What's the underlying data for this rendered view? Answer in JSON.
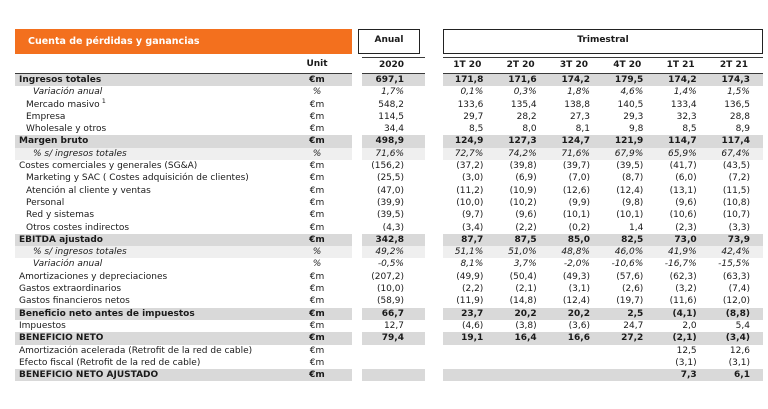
{
  "title": "Cuenta de pérdidas y ganancias",
  "colors": {
    "accent_orange": "#F3701E",
    "section_band": "#D9D9D9",
    "percent_band": "#EFEFEF"
  },
  "columns": {
    "unit_label": "Unit",
    "anual_label": "Anual",
    "anual_year": "2020",
    "trimestral_label": "Trimestral",
    "quarters": [
      "1T 20",
      "2T 20",
      "3T 20",
      "4T 20",
      "1T 21",
      "2T 21"
    ]
  },
  "rows": [
    {
      "label": "Ingresos totales",
      "unit": "€m",
      "style": "section",
      "indent": 0,
      "anual": "697,1",
      "values": [
        "171,8",
        "171,6",
        "174,2",
        "179,5",
        "174,2",
        "174,3"
      ]
    },
    {
      "label": "Variación anual",
      "unit": "%",
      "style": "italic",
      "indent": 2,
      "anual": "1,7%",
      "values": [
        "0,1%",
        "0,3%",
        "1,8%",
        "4,6%",
        "1,4%",
        "1,5%"
      ]
    },
    {
      "label": "Mercado masivo",
      "sup": "1",
      "unit": "€m",
      "style": "normal",
      "indent": 1,
      "anual": "548,2",
      "values": [
        "133,6",
        "135,4",
        "138,8",
        "140,5",
        "133,4",
        "136,5"
      ]
    },
    {
      "label": "Empresa",
      "unit": "€m",
      "style": "normal",
      "indent": 1,
      "anual": "114,5",
      "values": [
        "29,7",
        "28,2",
        "27,3",
        "29,3",
        "32,3",
        "28,8"
      ]
    },
    {
      "label": "Wholesale y otros",
      "unit": "€m",
      "style": "normal",
      "indent": 1,
      "anual": "34,4",
      "values": [
        "8,5",
        "8,0",
        "8,1",
        "9,8",
        "8,5",
        "8,9"
      ]
    },
    {
      "label": "Margen bruto",
      "unit": "€m",
      "style": "section",
      "indent": 0,
      "anual": "498,9",
      "values": [
        "124,9",
        "127,3",
        "124,7",
        "121,9",
        "114,7",
        "117,4"
      ]
    },
    {
      "label": "% s/ ingresos totales",
      "unit": "%",
      "style": "pct",
      "indent": 2,
      "anual": "71,6%",
      "values": [
        "72,7%",
        "74,2%",
        "71,6%",
        "67,9%",
        "65,9%",
        "67,4%"
      ]
    },
    {
      "label": "Costes comerciales y generales (SG&A)",
      "unit": "€m",
      "style": "normal",
      "indent": 0,
      "anual": "(156,2)",
      "values": [
        "(37,2)",
        "(39,8)",
        "(39,7)",
        "(39,5)",
        "(41,7)",
        "(43,5)"
      ]
    },
    {
      "label": "Marketing y SAC ( Costes adquisición de clientes)",
      "unit": "€m",
      "style": "normal",
      "indent": 1,
      "anual": "(25,5)",
      "values": [
        "(3,0)",
        "(6,9)",
        "(7,0)",
        "(8,7)",
        "(6,0)",
        "(7,2)"
      ]
    },
    {
      "label": "Atención al cliente y ventas",
      "unit": "€m",
      "style": "normal",
      "indent": 1,
      "anual": "(47,0)",
      "values": [
        "(11,2)",
        "(10,9)",
        "(12,6)",
        "(12,4)",
        "(13,1)",
        "(11,5)"
      ]
    },
    {
      "label": "Personal",
      "unit": "€m",
      "style": "normal",
      "indent": 1,
      "anual": "(39,9)",
      "values": [
        "(10,0)",
        "(10,2)",
        "(9,9)",
        "(9,8)",
        "(9,6)",
        "(10,8)"
      ]
    },
    {
      "label": "Red y sistemas",
      "unit": "€m",
      "style": "normal",
      "indent": 1,
      "anual": "(39,5)",
      "values": [
        "(9,7)",
        "(9,6)",
        "(10,1)",
        "(10,1)",
        "(10,6)",
        "(10,7)"
      ]
    },
    {
      "label": "Otros costes indirectos",
      "unit": "€m",
      "style": "normal",
      "indent": 1,
      "anual": "(4,3)",
      "values": [
        "(3,4)",
        "(2,2)",
        "(0,2)",
        "1,4",
        "(2,3)",
        "(3,3)"
      ]
    },
    {
      "label": "EBITDA ajustado",
      "unit": "€m",
      "style": "section",
      "indent": 0,
      "anual": "342,8",
      "values": [
        "87,7",
        "87,5",
        "85,0",
        "82,5",
        "73,0",
        "73,9"
      ]
    },
    {
      "label": "% s/ ingresos totales",
      "unit": "%",
      "style": "pct",
      "indent": 2,
      "anual": "49,2%",
      "values": [
        "51,1%",
        "51,0%",
        "48,8%",
        "46,0%",
        "41,9%",
        "42,4%"
      ]
    },
    {
      "label": "Variación anual",
      "unit": "%",
      "style": "italic",
      "indent": 2,
      "anual": "-0,5%",
      "values": [
        "8,1%",
        "3,7%",
        "-2,0%",
        "-10,6%",
        "-16,7%",
        "-15,5%"
      ]
    },
    {
      "label": "Amortizaciones y depreciaciones",
      "unit": "€m",
      "style": "normal",
      "indent": 0,
      "anual": "(207,2)",
      "values": [
        "(49,9)",
        "(50,4)",
        "(49,3)",
        "(57,6)",
        "(62,3)",
        "(63,3)"
      ]
    },
    {
      "label": "Gastos extraordinarios",
      "unit": "€m",
      "style": "normal",
      "indent": 0,
      "anual": "(10,0)",
      "values": [
        "(2,2)",
        "(2,1)",
        "(3,1)",
        "(2,6)",
        "(3,2)",
        "(7,4)"
      ]
    },
    {
      "label": "Gastos financieros netos",
      "unit": "€m",
      "style": "normal",
      "indent": 0,
      "anual": "(58,9)",
      "values": [
        "(11,9)",
        "(14,8)",
        "(12,4)",
        "(19,7)",
        "(11,6)",
        "(12,0)"
      ]
    },
    {
      "label": "Beneficio neto antes de impuestos",
      "unit": "€m",
      "style": "section",
      "indent": 0,
      "anual": "66,7",
      "values": [
        "23,7",
        "20,2",
        "20,2",
        "2,5",
        "(4,1)",
        "(8,8)"
      ]
    },
    {
      "label": "Impuestos",
      "unit": "€m",
      "style": "normal",
      "indent": 0,
      "anual": "12,7",
      "values": [
        "(4,6)",
        "(3,8)",
        "(3,6)",
        "24,7",
        "2,0",
        "5,4"
      ]
    },
    {
      "label": "BENEFICIO NETO",
      "unit": "€m",
      "style": "section",
      "indent": 0,
      "anual": "79,4",
      "values": [
        "19,1",
        "16,4",
        "16,6",
        "27,2",
        "(2,1)",
        "(3,4)"
      ]
    },
    {
      "label": "Amortización acelerada (Retrofit de la red de cable)",
      "unit": "€m",
      "style": "normal",
      "indent": 0,
      "anual": "",
      "values": [
        "",
        "",
        "",
        "",
        "12,5",
        "12,6"
      ]
    },
    {
      "label": "Efecto fiscal (Retrofit de la red de cable)",
      "unit": "€m",
      "style": "normal",
      "indent": 0,
      "anual": "",
      "values": [
        "",
        "",
        "",
        "",
        "(3,1)",
        "(3,1)"
      ]
    },
    {
      "label": "BENEFICIO NETO AJUSTADO",
      "unit": "€m",
      "style": "section",
      "indent": 0,
      "anual": "",
      "values": [
        "",
        "",
        "",
        "",
        "7,3",
        "6,1"
      ]
    }
  ]
}
